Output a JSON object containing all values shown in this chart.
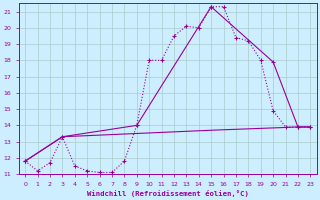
{
  "bg_color": "#cceeff",
  "grid_color": "#aacccc",
  "line_color": "#990099",
  "xlabel": "Windchill (Refroidissement éolien,°C)",
  "xlim": [
    -0.5,
    23.5
  ],
  "ylim": [
    11,
    21.5
  ],
  "xticks": [
    0,
    1,
    2,
    3,
    4,
    5,
    6,
    7,
    8,
    9,
    10,
    11,
    12,
    13,
    14,
    15,
    16,
    17,
    18,
    19,
    20,
    21,
    22,
    23
  ],
  "yticks": [
    11,
    12,
    13,
    14,
    15,
    16,
    17,
    18,
    19,
    20,
    21
  ],
  "line1_x": [
    0,
    1,
    2,
    3,
    4,
    5,
    6,
    7,
    8,
    9,
    10,
    11,
    12,
    13,
    14,
    15,
    16,
    17,
    18,
    19,
    20,
    21,
    22,
    23
  ],
  "line1_y": [
    11.8,
    11.2,
    11.7,
    13.3,
    11.5,
    11.2,
    11.1,
    11.1,
    11.8,
    14.0,
    18.0,
    18.0,
    19.5,
    20.1,
    20.0,
    21.3,
    21.3,
    19.4,
    19.2,
    18.0,
    14.9,
    13.9,
    13.9,
    13.9
  ],
  "line2_x": [
    0,
    3,
    9,
    15,
    20,
    22,
    23
  ],
  "line2_y": [
    11.8,
    13.3,
    14.0,
    21.3,
    17.9,
    13.9,
    13.9
  ],
  "line3_x": [
    0,
    3,
    9,
    15,
    22,
    23
  ],
  "line3_y": [
    11.8,
    13.3,
    13.5,
    13.7,
    13.9,
    13.9
  ]
}
